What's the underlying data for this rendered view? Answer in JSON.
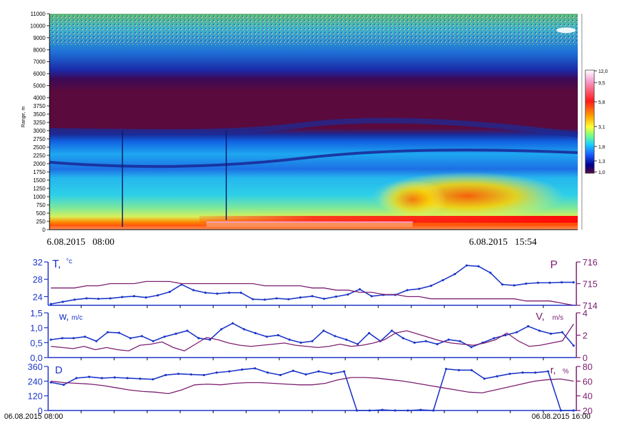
{
  "colors": {
    "temp_line": "#1a34c8",
    "pressure_line": "#7a1a6e",
    "axis_left": "#1a34c8",
    "axis_right": "#7a1a6e"
  },
  "lidar": {
    "ylabel": "Range, m",
    "yticks": [
      0,
      250,
      500,
      750,
      1000,
      1250,
      1500,
      1750,
      2000,
      2250,
      2500,
      2750,
      3000,
      3250,
      3500,
      3750,
      4000,
      5000,
      6000,
      7000,
      8000,
      9000,
      10000,
      11000
    ],
    "start_label": "6.08.2015   08:00",
    "end_label": "6.08.2015   15:54",
    "colorbar": {
      "ticks": [
        "12,0",
        "9,5",
        "5,8",
        "3,1",
        "1,8",
        "1,3",
        "1,0"
      ],
      "colors": [
        "#ffffff",
        "#f5a3d4",
        "#ff1a1a",
        "#ffa500",
        "#ffff33",
        "#7fff7f",
        "#19d1ff",
        "#1a5cff",
        "#00008b",
        "#5a0a3c"
      ]
    }
  },
  "chart_data": [
    {
      "type": "line",
      "title": "",
      "series": [
        {
          "name": "T,°C",
          "axis": "left",
          "ylim": [
            22,
            32
          ],
          "values": [
            22.3,
            22.8,
            23.3,
            23.6,
            23.5,
            23.6,
            23.9,
            24.1,
            23.8,
            24.3,
            25.1,
            26.8,
            25.5,
            24.9,
            24.7,
            24.9,
            24.9,
            23.4,
            23.3,
            23.6,
            23.4,
            23.8,
            24.1,
            23.5,
            24.0,
            24.5,
            25.7,
            24.1,
            24.4,
            24.4,
            25.5,
            25.8,
            26.5,
            27.8,
            29.2,
            31.2,
            31.0,
            29.5,
            26.8,
            26.6,
            27.0,
            27.2,
            27.2,
            27.3,
            27.3
          ]
        },
        {
          "name": "P",
          "axis": "right",
          "ylim": [
            714,
            716
          ],
          "values": [
            714.8,
            714.8,
            714.8,
            714.9,
            714.9,
            715.0,
            715.0,
            715.0,
            715.1,
            715.1,
            715.1,
            715.0,
            715.0,
            715.0,
            715.0,
            715.0,
            715.0,
            715.0,
            714.9,
            714.9,
            714.9,
            714.9,
            714.8,
            714.8,
            714.7,
            714.7,
            714.6,
            714.6,
            714.5,
            714.5,
            714.4,
            714.4,
            714.3,
            714.3,
            714.3,
            714.3,
            714.3,
            714.3,
            714.3,
            714.3,
            714.2,
            714.2,
            714.2,
            714.1,
            714.0
          ]
        }
      ],
      "left_ticks": [
        "24",
        "28",
        "32"
      ],
      "right_ticks": [
        "714",
        "715",
        "716"
      ]
    },
    {
      "type": "line",
      "series": [
        {
          "name": "w, m/c",
          "axis": "left",
          "ylim": [
            0,
            1.5
          ],
          "values": [
            0.6,
            0.65,
            0.65,
            0.7,
            0.55,
            0.85,
            0.83,
            0.65,
            0.72,
            0.55,
            0.7,
            0.8,
            0.9,
            0.65,
            0.6,
            0.95,
            1.15,
            0.95,
            0.82,
            0.7,
            0.75,
            0.6,
            0.5,
            0.55,
            0.9,
            0.72,
            0.6,
            0.45,
            0.82,
            0.55,
            0.9,
            0.65,
            0.5,
            0.55,
            0.45,
            0.6,
            0.55,
            0.35,
            0.5,
            0.65,
            0.75,
            0.85,
            1.05,
            0.9,
            0.8,
            0.85,
            0.4
          ]
        },
        {
          "name": "V, m/s",
          "axis": "right",
          "ylim": [
            0,
            4
          ],
          "values": [
            1.0,
            0.9,
            0.8,
            1.0,
            0.7,
            0.9,
            0.7,
            0.6,
            1.1,
            1.2,
            1.4,
            0.9,
            0.6,
            1.2,
            1.8,
            1.6,
            1.3,
            1.1,
            1.0,
            1.1,
            1.2,
            1.3,
            1.1,
            1.0,
            0.9,
            1.0,
            1.2,
            1.0,
            1.1,
            1.3,
            1.6,
            2.2,
            2.4,
            2.1,
            1.8,
            1.5,
            1.3,
            1.2,
            1.1,
            1.3,
            1.6,
            2.2,
            1.5,
            1.0,
            1.1,
            1.3,
            1.5,
            3.0
          ]
        }
      ],
      "left_ticks": [
        "0,0",
        "0,5",
        "1,0",
        "1,5"
      ],
      "right_ticks": [
        "0",
        "2",
        "4"
      ]
    },
    {
      "type": "line",
      "series": [
        {
          "name": "D",
          "axis": "left",
          "ylim": [
            0,
            360
          ],
          "values": [
            230,
            210,
            265,
            275,
            265,
            270,
            265,
            260,
            255,
            290,
            300,
            295,
            290,
            310,
            320,
            335,
            345,
            310,
            290,
            325,
            295,
            320,
            300,
            320,
            0,
            0,
            5,
            0,
            0,
            5,
            0,
            340,
            330,
            330,
            260,
            280,
            300,
            310,
            310,
            320,
            0,
            0
          ]
        },
        {
          "name": "r, %",
          "axis": "right",
          "ylim": [
            20,
            80
          ],
          "values": [
            60,
            58,
            57,
            56,
            54,
            51,
            48,
            46,
            45,
            43,
            48,
            55,
            56,
            55,
            57,
            58,
            58,
            57,
            56,
            55,
            55,
            57,
            62,
            65,
            65,
            64,
            62,
            60,
            57,
            54,
            51,
            48,
            45,
            44,
            48,
            52,
            56,
            60,
            62,
            63,
            60
          ]
        }
      ],
      "left_ticks": [
        "0",
        "120",
        "240",
        "360"
      ],
      "right_ticks": [
        "20",
        "40",
        "60",
        "80"
      ]
    }
  ],
  "bottom": {
    "start_label": "06.08.2015 08:00",
    "end_label": "06.08.2015 16:00"
  },
  "labels": {
    "T": "T,",
    "T_unit": "°c",
    "P": "P",
    "w": "w,",
    "w_unit": "m/c",
    "V": "V,",
    "V_unit": "m/s",
    "D": "D",
    "r": "r,",
    "r_unit": "%"
  }
}
